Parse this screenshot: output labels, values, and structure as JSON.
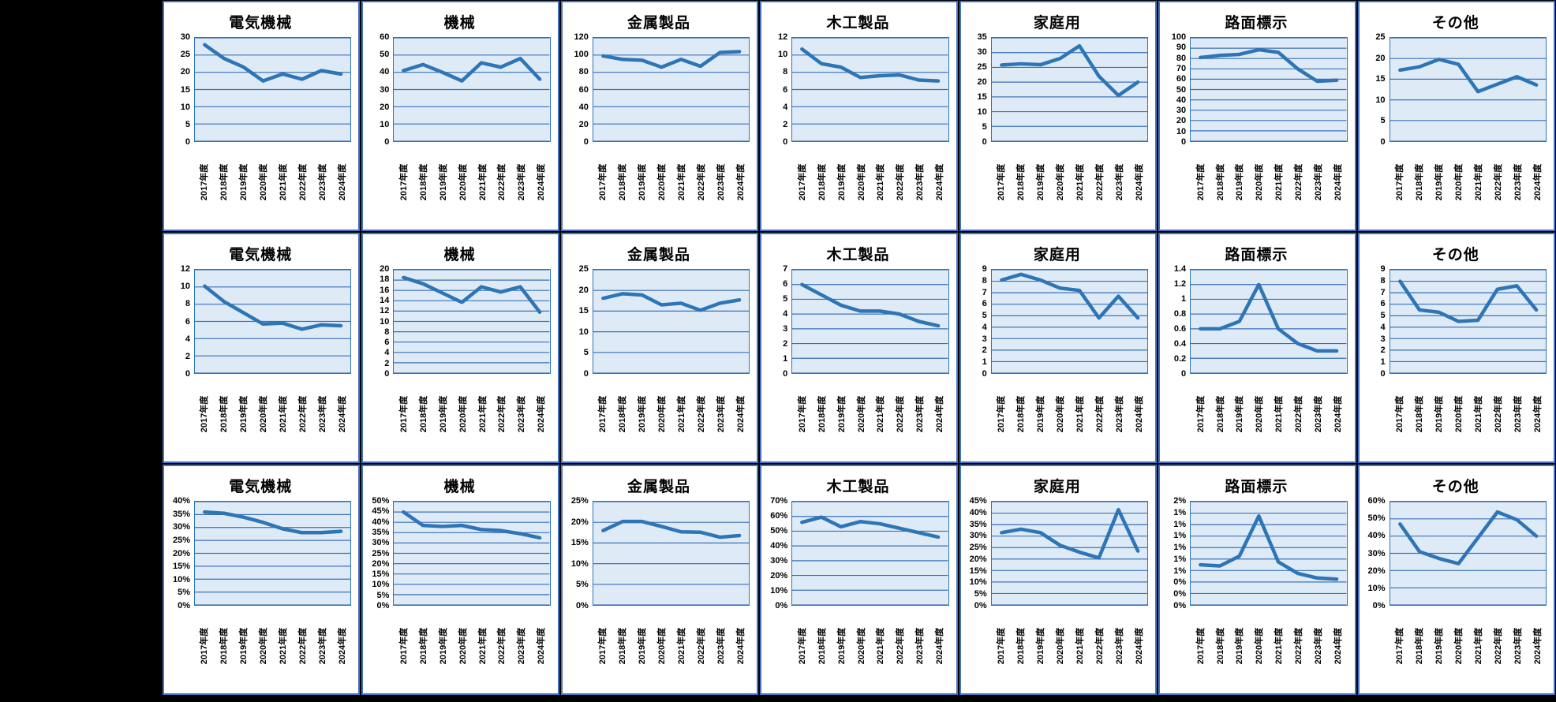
{
  "page": {
    "background": "#000000",
    "grid_rows": 3,
    "grid_cols": 7
  },
  "colors": {
    "line": "#2E75B6",
    "plot_fill": "#DEEBF7",
    "gridline": "#3A70B8",
    "cell_border": "#4472C4",
    "cell_background": "#FFFFFF",
    "page_background": "#000000",
    "text": "#000000"
  },
  "categories": [
    "2017年度",
    "2018年度",
    "2019年度",
    "2020年度",
    "2021年度",
    "2022年度",
    "2023年度",
    "2024年度"
  ],
  "chart_data": [
    {
      "type": "line",
      "row": 1,
      "col": 1,
      "title": "電気機械",
      "ylim": [
        0,
        30
      ],
      "y_ticks": [
        "30",
        "25",
        "20",
        "15",
        "10",
        "5",
        "0"
      ],
      "values": [
        28,
        24,
        21.5,
        17.5,
        19.5,
        18,
        20.5,
        19.5
      ]
    },
    {
      "type": "line",
      "row": 1,
      "col": 2,
      "title": "機械",
      "ylim": [
        0,
        60
      ],
      "y_ticks": [
        "60",
        "50",
        "40",
        "30",
        "20",
        "10",
        "0"
      ],
      "values": [
        41,
        44.5,
        40,
        35,
        45.5,
        43,
        48,
        36
      ]
    },
    {
      "type": "line",
      "row": 1,
      "col": 3,
      "title": "金属製品",
      "ylim": [
        0,
        120
      ],
      "y_ticks": [
        "120",
        "100",
        "80",
        "60",
        "40",
        "20",
        "0"
      ],
      "values": [
        99,
        95,
        94,
        86,
        95,
        87,
        103,
        104
      ]
    },
    {
      "type": "line",
      "row": 1,
      "col": 4,
      "title": "木工製品",
      "ylim": [
        0,
        12
      ],
      "y_ticks": [
        "12",
        "10",
        "8",
        "6",
        "4",
        "2",
        "0"
      ],
      "values": [
        10.7,
        9,
        8.6,
        7.4,
        7.6,
        7.7,
        7.1,
        7
      ]
    },
    {
      "type": "line",
      "row": 1,
      "col": 5,
      "title": "家庭用",
      "ylim": [
        0,
        35
      ],
      "y_ticks": [
        "35",
        "30",
        "25",
        "20",
        "15",
        "10",
        "5",
        "0"
      ],
      "values": [
        25.8,
        26.2,
        25.9,
        28,
        32.3,
        22,
        15.5,
        20
      ]
    },
    {
      "type": "line",
      "row": 1,
      "col": 6,
      "title": "路面標示",
      "ylim": [
        0,
        100
      ],
      "y_ticks": [
        "100",
        "90",
        "80",
        "70",
        "60",
        "50",
        "40",
        "30",
        "20",
        "10",
        "0"
      ],
      "values": [
        81,
        83,
        84,
        88.5,
        86,
        70,
        58,
        59
      ]
    },
    {
      "type": "line",
      "row": 1,
      "col": 7,
      "title": "その他",
      "ylim": [
        0,
        25
      ],
      "y_ticks": [
        "25",
        "20",
        "15",
        "10",
        "5",
        "0"
      ],
      "values": [
        17.2,
        18,
        19.8,
        18.6,
        12,
        13.8,
        15.6,
        13.6
      ]
    },
    {
      "type": "line",
      "row": 2,
      "col": 1,
      "title": "電気機械",
      "ylim": [
        0,
        12
      ],
      "y_ticks": [
        "12",
        "10",
        "8",
        "6",
        "4",
        "2",
        "0"
      ],
      "values": [
        10.1,
        8.3,
        7,
        5.7,
        5.8,
        5.1,
        5.6,
        5.5
      ]
    },
    {
      "type": "line",
      "row": 2,
      "col": 2,
      "title": "機械",
      "ylim": [
        0,
        20
      ],
      "y_ticks": [
        "20",
        "18",
        "16",
        "14",
        "12",
        "10",
        "8",
        "6",
        "4",
        "2",
        "0"
      ],
      "values": [
        18.5,
        17.3,
        15.5,
        13.7,
        16.7,
        15.7,
        16.7,
        11.8
      ]
    },
    {
      "type": "line",
      "row": 2,
      "col": 3,
      "title": "金属製品",
      "ylim": [
        0,
        25
      ],
      "y_ticks": [
        "25",
        "20",
        "15",
        "10",
        "5",
        "0"
      ],
      "values": [
        18.1,
        19.2,
        18.9,
        16.5,
        16.9,
        15.2,
        16.9,
        17.7
      ]
    },
    {
      "type": "line",
      "row": 2,
      "col": 4,
      "title": "木工製品",
      "ylim": [
        0,
        7
      ],
      "y_ticks": [
        "7",
        "6",
        "5",
        "4",
        "3",
        "2",
        "1",
        "0"
      ],
      "values": [
        6,
        5.3,
        4.6,
        4.2,
        4.2,
        4,
        3.5,
        3.2
      ]
    },
    {
      "type": "line",
      "row": 2,
      "col": 5,
      "title": "家庭用",
      "ylim": [
        0,
        9
      ],
      "y_ticks": [
        "9",
        "8",
        "7",
        "6",
        "5",
        "4",
        "3",
        "2",
        "1",
        "0"
      ],
      "values": [
        8.1,
        8.6,
        8.1,
        7.4,
        7.2,
        4.8,
        6.7,
        4.8
      ]
    },
    {
      "type": "line",
      "row": 2,
      "col": 6,
      "title": "路面標示",
      "ylim": [
        0,
        1.4
      ],
      "y_ticks": [
        "1.4",
        "1.2",
        "1",
        "0.8",
        "0.6",
        "0.4",
        "0.2",
        "0"
      ],
      "values": [
        0.6,
        0.6,
        0.7,
        1.2,
        0.6,
        0.4,
        0.3,
        0.3
      ]
    },
    {
      "type": "line",
      "row": 2,
      "col": 7,
      "title": "その他",
      "ylim": [
        0,
        9
      ],
      "y_ticks": [
        "9",
        "8",
        "7",
        "6",
        "5",
        "4",
        "3",
        "2",
        "1",
        "0"
      ],
      "values": [
        8,
        5.5,
        5.3,
        4.5,
        4.6,
        7.3,
        7.6,
        5.5
      ]
    },
    {
      "type": "line",
      "row": 3,
      "col": 1,
      "title": "電気機械",
      "unit": "%",
      "ylim": [
        0,
        40
      ],
      "y_ticks": [
        "40%",
        "35%",
        "30%",
        "25%",
        "20%",
        "15%",
        "10%",
        "5%",
        "0%"
      ],
      "values": [
        36,
        35.5,
        34,
        32,
        29.5,
        28,
        28,
        28.5
      ]
    },
    {
      "type": "line",
      "row": 3,
      "col": 2,
      "title": "機械",
      "unit": "%",
      "ylim": [
        0,
        50
      ],
      "y_ticks": [
        "50%",
        "45%",
        "40%",
        "35%",
        "30%",
        "25%",
        "20%",
        "15%",
        "10%",
        "5%",
        "0%"
      ],
      "values": [
        45,
        38.5,
        38,
        38.5,
        36.5,
        36,
        34.5,
        32.5
      ]
    },
    {
      "type": "line",
      "row": 3,
      "col": 3,
      "title": "金属製品",
      "unit": "%",
      "ylim": [
        0,
        25
      ],
      "y_ticks": [
        "25%",
        "20%",
        "15%",
        "10%",
        "5%",
        "0%"
      ],
      "values": [
        18,
        20.2,
        20.2,
        19,
        17.7,
        17.6,
        16.4,
        16.8
      ]
    },
    {
      "type": "line",
      "row": 3,
      "col": 4,
      "title": "木工製品",
      "unit": "%",
      "ylim": [
        0,
        70
      ],
      "y_ticks": [
        "70%",
        "60%",
        "50%",
        "40%",
        "30%",
        "20%",
        "10%",
        "0%"
      ],
      "values": [
        56,
        59.5,
        53,
        56.5,
        55,
        52,
        49,
        46
      ]
    },
    {
      "type": "line",
      "row": 3,
      "col": 5,
      "title": "家庭用",
      "unit": "%",
      "ylim": [
        0,
        45
      ],
      "y_ticks": [
        "45%",
        "40%",
        "35%",
        "30%",
        "25%",
        "20%",
        "15%",
        "10%",
        "5%",
        "0%"
      ],
      "values": [
        31.5,
        33,
        31.5,
        26,
        23,
        20.5,
        41.5,
        23.5
      ]
    },
    {
      "type": "line",
      "row": 3,
      "col": 6,
      "title": "路面標示",
      "unit": "%",
      "ylim": [
        0,
        1.8
      ],
      "y_ticks": [
        "2%",
        "1%",
        "1%",
        "1%",
        "1%",
        "1%",
        "1%",
        "0%",
        "0%",
        "0%"
      ],
      "values": [
        0.7,
        0.68,
        0.85,
        1.55,
        0.75,
        0.55,
        0.47,
        0.45
      ]
    },
    {
      "type": "line",
      "row": 3,
      "col": 7,
      "title": "その他",
      "unit": "%",
      "ylim": [
        0,
        60
      ],
      "y_ticks": [
        "60%",
        "50%",
        "40%",
        "30%",
        "20%",
        "10%",
        "0%"
      ],
      "values": [
        47,
        31,
        27,
        24,
        39,
        54,
        49.5,
        40
      ]
    }
  ]
}
